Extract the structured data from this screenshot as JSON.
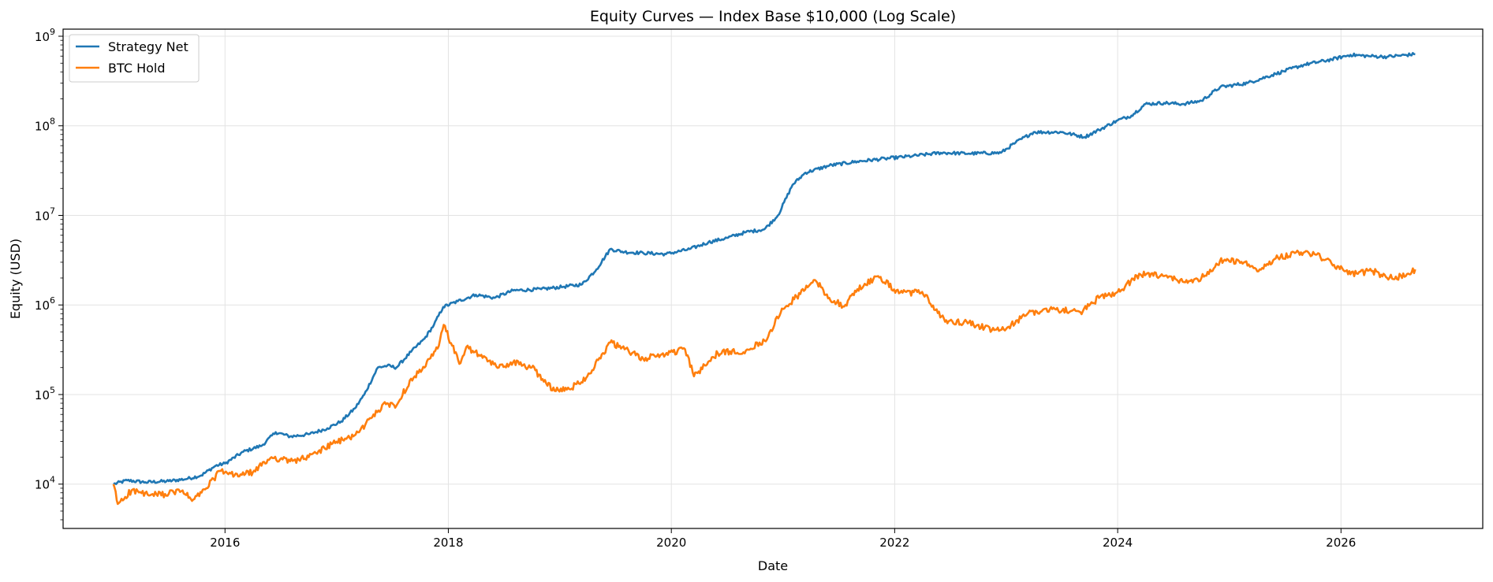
{
  "chart_data": {
    "type": "line",
    "title": "Equity Curves — Index Base $10,000 (Log Scale)",
    "xlabel": "Date",
    "ylabel": "Equity (USD)",
    "y_scale": "log",
    "grid": true,
    "legend_position": "top-left",
    "xlim": [
      "2014-07-20",
      "2027-04-10"
    ],
    "ylim": [
      3200,
      1200000000
    ],
    "x_ticks": [
      "2016-01-01",
      "2018-01-01",
      "2020-01-01",
      "2022-01-01",
      "2024-01-01",
      "2026-01-01"
    ],
    "x_tick_labels": [
      "2016",
      "2018",
      "2020",
      "2022",
      "2024",
      "2026"
    ],
    "y_ticks": [
      10000,
      100000,
      1000000,
      10000000,
      100000000,
      1000000000
    ],
    "y_tick_labels": [
      {
        "base": "10",
        "exp": "4"
      },
      {
        "base": "10",
        "exp": "5"
      },
      {
        "base": "10",
        "exp": "6"
      },
      {
        "base": "10",
        "exp": "7"
      },
      {
        "base": "10",
        "exp": "8"
      },
      {
        "base": "10",
        "exp": "9"
      }
    ],
    "series": [
      {
        "name": "Strategy Net",
        "color": "#1f77b4",
        "points": [
          [
            "2015-01-01",
            10000
          ],
          [
            "2015-02-15",
            11000
          ],
          [
            "2015-04-15",
            10500
          ],
          [
            "2015-07-01",
            10800
          ],
          [
            "2015-09-01",
            11500
          ],
          [
            "2015-10-15",
            12500
          ],
          [
            "2015-12-01",
            16000
          ],
          [
            "2016-01-01",
            17000
          ],
          [
            "2016-03-01",
            23000
          ],
          [
            "2016-05-01",
            27000
          ],
          [
            "2016-06-15",
            38000
          ],
          [
            "2016-08-01",
            34000
          ],
          [
            "2016-10-01",
            36000
          ],
          [
            "2016-12-01",
            42000
          ],
          [
            "2017-01-15",
            50000
          ],
          [
            "2017-03-01",
            70000
          ],
          [
            "2017-04-01",
            100000
          ],
          [
            "2017-05-15",
            200000
          ],
          [
            "2017-06-15",
            210000
          ],
          [
            "2017-07-15",
            200000
          ],
          [
            "2017-09-01",
            300000
          ],
          [
            "2017-10-15",
            420000
          ],
          [
            "2017-11-15",
            600000
          ],
          [
            "2017-12-15",
            950000
          ],
          [
            "2018-02-01",
            1100000
          ],
          [
            "2018-04-01",
            1300000
          ],
          [
            "2018-06-01",
            1200000
          ],
          [
            "2018-08-01",
            1450000
          ],
          [
            "2018-11-01",
            1500000
          ],
          [
            "2019-01-15",
            1600000
          ],
          [
            "2019-03-15",
            1700000
          ],
          [
            "2019-05-01",
            2500000
          ],
          [
            "2019-06-15",
            4200000
          ],
          [
            "2019-08-01",
            3900000
          ],
          [
            "2019-10-01",
            3800000
          ],
          [
            "2019-12-15",
            3700000
          ],
          [
            "2020-03-01",
            4200000
          ],
          [
            "2020-05-01",
            5000000
          ],
          [
            "2020-07-01",
            5600000
          ],
          [
            "2020-09-01",
            6500000
          ],
          [
            "2020-11-01",
            7000000
          ],
          [
            "2020-12-15",
            10000000
          ],
          [
            "2021-02-01",
            22000000
          ],
          [
            "2021-03-15",
            30000000
          ],
          [
            "2021-06-01",
            36000000
          ],
          [
            "2021-09-01",
            40000000
          ],
          [
            "2021-12-01",
            43000000
          ],
          [
            "2022-03-01",
            46000000
          ],
          [
            "2022-06-01",
            50000000
          ],
          [
            "2022-09-01",
            49000000
          ],
          [
            "2022-12-15",
            50000000
          ],
          [
            "2023-02-01",
            65000000
          ],
          [
            "2023-04-01",
            85000000
          ],
          [
            "2023-07-01",
            85000000
          ],
          [
            "2023-09-15",
            75000000
          ],
          [
            "2023-11-01",
            90000000
          ],
          [
            "2024-01-01",
            115000000
          ],
          [
            "2024-02-15",
            130000000
          ],
          [
            "2024-04-01",
            175000000
          ],
          [
            "2024-06-01",
            180000000
          ],
          [
            "2024-08-01",
            175000000
          ],
          [
            "2024-10-01",
            190000000
          ],
          [
            "2024-12-01",
            270000000
          ],
          [
            "2025-03-01",
            300000000
          ],
          [
            "2025-06-01",
            380000000
          ],
          [
            "2025-09-01",
            480000000
          ],
          [
            "2025-12-01",
            550000000
          ],
          [
            "2026-02-01",
            620000000
          ],
          [
            "2026-04-01",
            600000000
          ],
          [
            "2026-06-01",
            590000000
          ],
          [
            "2026-09-01",
            630000000
          ]
        ]
      },
      {
        "name": "BTC Hold",
        "color": "#ff7f0e",
        "points": [
          [
            "2015-01-01",
            10000
          ],
          [
            "2015-01-15",
            6000
          ],
          [
            "2015-03-01",
            8500
          ],
          [
            "2015-05-01",
            7500
          ],
          [
            "2015-07-01",
            7800
          ],
          [
            "2015-08-15",
            8500
          ],
          [
            "2015-09-15",
            6500
          ],
          [
            "2015-11-01",
            9000
          ],
          [
            "2015-12-15",
            14000
          ],
          [
            "2016-02-01",
            12500
          ],
          [
            "2016-04-01",
            13500
          ],
          [
            "2016-06-01",
            20000
          ],
          [
            "2016-08-01",
            18000
          ],
          [
            "2016-10-01",
            20000
          ],
          [
            "2016-12-15",
            28000
          ],
          [
            "2017-02-01",
            32000
          ],
          [
            "2017-03-15",
            38000
          ],
          [
            "2017-05-01",
            60000
          ],
          [
            "2017-06-15",
            80000
          ],
          [
            "2017-07-15",
            75000
          ],
          [
            "2017-09-01",
            150000
          ],
          [
            "2017-10-15",
            200000
          ],
          [
            "2017-12-01",
            350000
          ],
          [
            "2017-12-17",
            600000
          ],
          [
            "2018-02-06",
            220000
          ],
          [
            "2018-03-01",
            340000
          ],
          [
            "2018-04-15",
            270000
          ],
          [
            "2018-06-15",
            200000
          ],
          [
            "2018-08-01",
            230000
          ],
          [
            "2018-10-01",
            200000
          ],
          [
            "2018-12-15",
            110000
          ],
          [
            "2019-02-01",
            115000
          ],
          [
            "2019-04-01",
            160000
          ],
          [
            "2019-06-15",
            380000
          ],
          [
            "2019-08-01",
            320000
          ],
          [
            "2019-10-01",
            250000
          ],
          [
            "2020-02-15",
            320000
          ],
          [
            "2020-03-15",
            160000
          ],
          [
            "2020-06-01",
            290000
          ],
          [
            "2020-09-01",
            310000
          ],
          [
            "2020-11-01",
            400000
          ],
          [
            "2021-01-01",
            900000
          ],
          [
            "2021-04-15",
            1900000
          ],
          [
            "2021-06-01",
            1200000
          ],
          [
            "2021-07-20",
            960000
          ],
          [
            "2021-09-01",
            1500000
          ],
          [
            "2021-11-08",
            2100000
          ],
          [
            "2022-01-15",
            1350000
          ],
          [
            "2022-04-01",
            1400000
          ],
          [
            "2022-06-15",
            650000
          ],
          [
            "2022-09-01",
            640000
          ],
          [
            "2022-11-15",
            520000
          ],
          [
            "2023-01-01",
            540000
          ],
          [
            "2023-03-15",
            820000
          ],
          [
            "2023-06-01",
            900000
          ],
          [
            "2023-09-01",
            830000
          ],
          [
            "2023-11-01",
            1200000
          ],
          [
            "2024-01-01",
            1400000
          ],
          [
            "2024-03-15",
            2200000
          ],
          [
            "2024-06-01",
            2100000
          ],
          [
            "2024-08-05",
            1800000
          ],
          [
            "2024-10-01",
            2000000
          ],
          [
            "2024-12-01",
            3100000
          ],
          [
            "2025-02-01",
            3100000
          ],
          [
            "2025-04-10",
            2500000
          ],
          [
            "2025-06-01",
            3300000
          ],
          [
            "2025-08-15",
            3900000
          ],
          [
            "2025-10-06",
            3700000
          ],
          [
            "2025-12-01",
            2900000
          ],
          [
            "2026-02-01",
            2200000
          ],
          [
            "2026-04-15",
            2400000
          ],
          [
            "2026-06-01",
            2000000
          ],
          [
            "2026-08-01",
            2100000
          ],
          [
            "2026-09-01",
            2500000
          ]
        ]
      }
    ]
  }
}
